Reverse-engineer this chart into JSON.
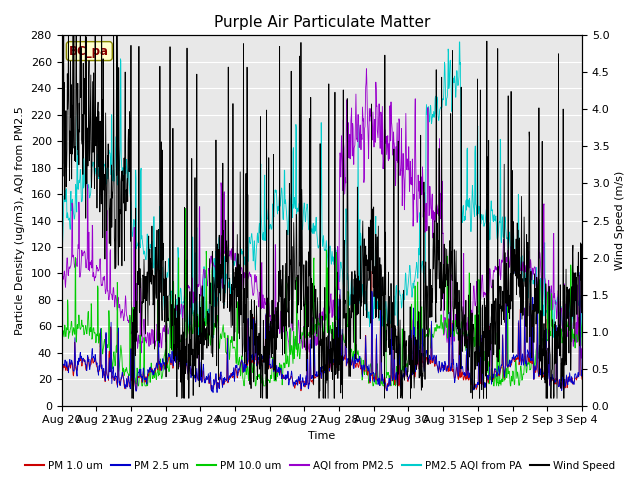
{
  "title": "Purple Air Particulate Matter",
  "xlabel": "Time",
  "ylabel_left": "Particle Density (ug/m3), AQI from PM2.5",
  "ylabel_right": "Wind Speed (m/s)",
  "station_label": "BC_pa",
  "ylim_left": [
    0,
    280
  ],
  "ylim_right": [
    0.0,
    5.0
  ],
  "yticks_left": [
    0,
    20,
    40,
    60,
    80,
    100,
    120,
    140,
    160,
    180,
    200,
    220,
    240,
    260,
    280
  ],
  "yticks_right": [
    0.0,
    0.5,
    1.0,
    1.5,
    2.0,
    2.5,
    3.0,
    3.5,
    4.0,
    4.5,
    5.0
  ],
  "date_labels": [
    "Aug 20",
    "Aug 21",
    "Aug 22",
    "Aug 23",
    "Aug 24",
    "Aug 25",
    "Aug 26",
    "Aug 27",
    "Aug 28",
    "Aug 29",
    "Aug 30",
    "Aug 31",
    "Sep 1",
    "Sep 2",
    "Sep 3",
    "Sep 4"
  ],
  "n_points": 1440,
  "colors": {
    "pm1": "#cc0000",
    "pm25": "#0000cc",
    "pm10": "#00cc00",
    "aqi_pm25": "#9900cc",
    "aqi_pa": "#00cccc",
    "wind": "#000000"
  },
  "legend_labels": [
    "PM 1.0 um",
    "PM 2.5 um",
    "PM 10.0 um",
    "AQI from PM2.5",
    "PM2.5 AQI from PA",
    "Wind Speed"
  ],
  "background_color": "#e8e8e8",
  "title_fontsize": 11,
  "label_fontsize": 8,
  "tick_fontsize": 8,
  "line_width": 0.6
}
